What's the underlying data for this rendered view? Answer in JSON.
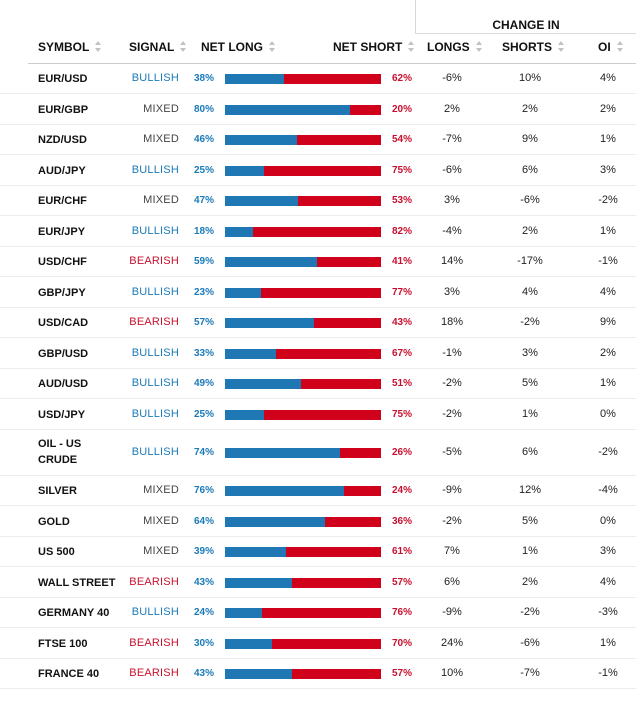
{
  "header": {
    "group_label": "CHANGE IN",
    "columns": {
      "symbol": "SYMBOL",
      "signal": "SIGNAL",
      "net_long": "NET LONG",
      "net_short": "NET SHORT",
      "longs": "LONGS",
      "shorts": "SHORTS",
      "oi": "OI"
    }
  },
  "colors": {
    "long": "#1f78b4",
    "short": "#d0021b",
    "bullish": "#1a7ab8",
    "bearish": "#c8102e",
    "mixed": "#444444"
  },
  "rows": [
    {
      "symbol": "EUR/USD",
      "signal": "BULLISH",
      "net_long": "38%",
      "net_short": "62%",
      "long_fraction": 0.38,
      "longs": "-6%",
      "shorts": "10%",
      "oi": "4%"
    },
    {
      "symbol": "EUR/GBP",
      "signal": "MIXED",
      "net_long": "80%",
      "net_short": "20%",
      "long_fraction": 0.8,
      "longs": "2%",
      "shorts": "2%",
      "oi": "2%"
    },
    {
      "symbol": "NZD/USD",
      "signal": "MIXED",
      "net_long": "46%",
      "net_short": "54%",
      "long_fraction": 0.46,
      "longs": "-7%",
      "shorts": "9%",
      "oi": "1%"
    },
    {
      "symbol": "AUD/JPY",
      "signal": "BULLISH",
      "net_long": "25%",
      "net_short": "75%",
      "long_fraction": 0.25,
      "longs": "-6%",
      "shorts": "6%",
      "oi": "3%"
    },
    {
      "symbol": "EUR/CHF",
      "signal": "MIXED",
      "net_long": "47%",
      "net_short": "53%",
      "long_fraction": 0.47,
      "longs": "3%",
      "shorts": "-6%",
      "oi": "-2%"
    },
    {
      "symbol": "EUR/JPY",
      "signal": "BULLISH",
      "net_long": "18%",
      "net_short": "82%",
      "long_fraction": 0.18,
      "longs": "-4%",
      "shorts": "2%",
      "oi": "1%"
    },
    {
      "symbol": "USD/CHF",
      "signal": "BEARISH",
      "net_long": "59%",
      "net_short": "41%",
      "long_fraction": 0.59,
      "longs": "14%",
      "shorts": "-17%",
      "oi": "-1%"
    },
    {
      "symbol": "GBP/JPY",
      "signal": "BULLISH",
      "net_long": "23%",
      "net_short": "77%",
      "long_fraction": 0.23,
      "longs": "3%",
      "shorts": "4%",
      "oi": "4%"
    },
    {
      "symbol": "USD/CAD",
      "signal": "BEARISH",
      "net_long": "57%",
      "net_short": "43%",
      "long_fraction": 0.57,
      "longs": "18%",
      "shorts": "-2%",
      "oi": "9%"
    },
    {
      "symbol": "GBP/USD",
      "signal": "BULLISH",
      "net_long": "33%",
      "net_short": "67%",
      "long_fraction": 0.33,
      "longs": "-1%",
      "shorts": "3%",
      "oi": "2%"
    },
    {
      "symbol": "AUD/USD",
      "signal": "BULLISH",
      "net_long": "49%",
      "net_short": "51%",
      "long_fraction": 0.49,
      "longs": "-2%",
      "shorts": "5%",
      "oi": "1%"
    },
    {
      "symbol": "USD/JPY",
      "signal": "BULLISH",
      "net_long": "25%",
      "net_short": "75%",
      "long_fraction": 0.25,
      "longs": "-2%",
      "shorts": "1%",
      "oi": "0%"
    },
    {
      "symbol": "OIL - US CRUDE",
      "signal": "BULLISH",
      "net_long": "74%",
      "net_short": "26%",
      "long_fraction": 0.74,
      "longs": "-5%",
      "shorts": "6%",
      "oi": "-2%"
    },
    {
      "symbol": "SILVER",
      "signal": "MIXED",
      "net_long": "76%",
      "net_short": "24%",
      "long_fraction": 0.76,
      "longs": "-9%",
      "shorts": "12%",
      "oi": "-4%"
    },
    {
      "symbol": "GOLD",
      "signal": "MIXED",
      "net_long": "64%",
      "net_short": "36%",
      "long_fraction": 0.64,
      "longs": "-2%",
      "shorts": "5%",
      "oi": "0%"
    },
    {
      "symbol": "US 500",
      "signal": "MIXED",
      "net_long": "39%",
      "net_short": "61%",
      "long_fraction": 0.39,
      "longs": "7%",
      "shorts": "1%",
      "oi": "3%"
    },
    {
      "symbol": "WALL STREET",
      "signal": "BEARISH",
      "net_long": "43%",
      "net_short": "57%",
      "long_fraction": 0.43,
      "longs": "6%",
      "shorts": "2%",
      "oi": "4%"
    },
    {
      "symbol": "GERMANY 40",
      "signal": "BULLISH",
      "net_long": "24%",
      "net_short": "76%",
      "long_fraction": 0.24,
      "longs": "-9%",
      "shorts": "-2%",
      "oi": "-3%"
    },
    {
      "symbol": "FTSE 100",
      "signal": "BEARISH",
      "net_long": "30%",
      "net_short": "70%",
      "long_fraction": 0.3,
      "longs": "24%",
      "shorts": "-6%",
      "oi": "1%"
    },
    {
      "symbol": "FRANCE 40",
      "signal": "BEARISH",
      "net_long": "43%",
      "net_short": "57%",
      "long_fraction": 0.43,
      "longs": "10%",
      "shorts": "-7%",
      "oi": "-1%"
    }
  ]
}
